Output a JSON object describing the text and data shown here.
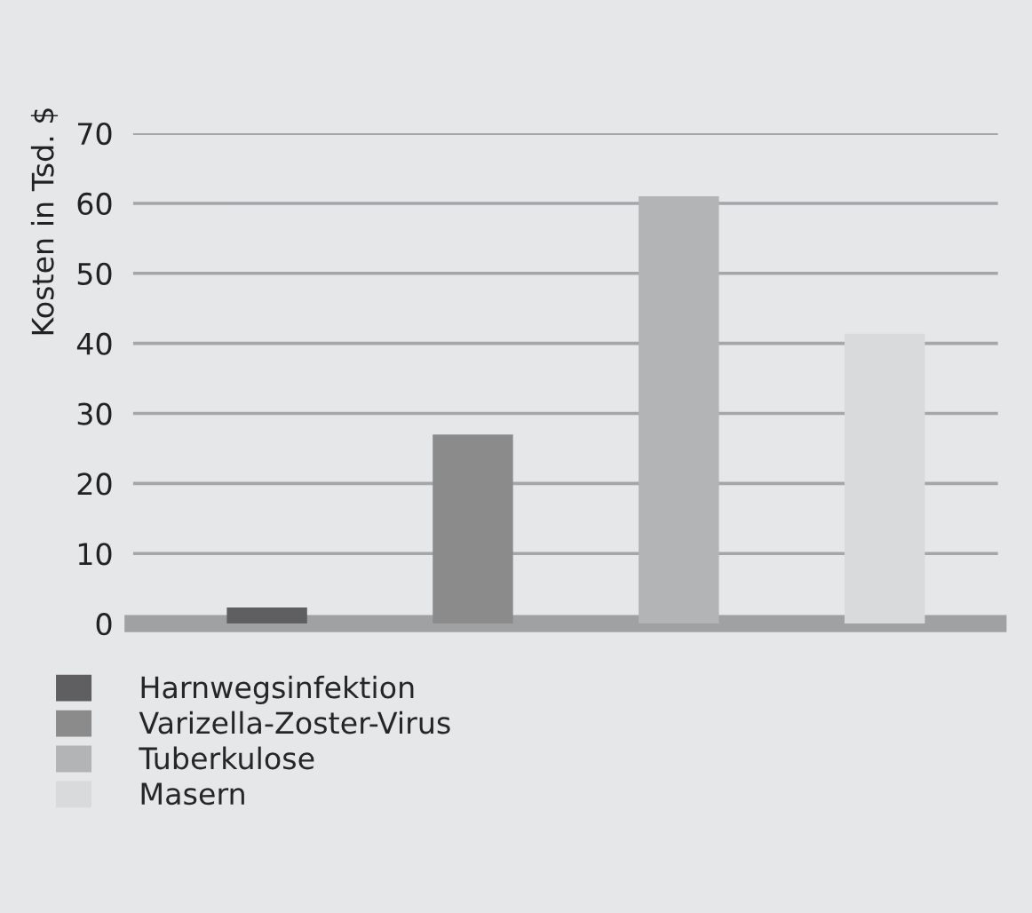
{
  "chart_data": {
    "type": "bar",
    "ylabel": "Kosten in Tsd. $",
    "categories": [
      null,
      null,
      null,
      null
    ],
    "series": [
      {
        "name": "Harnwegsinfektion",
        "color": "#5f5f61",
        "values": [
          2.3,
          null,
          null,
          null
        ]
      },
      {
        "name": "Varizella-Zoster-Virus",
        "color": "#8a8b8a",
        "values": [
          null,
          27,
          null,
          null
        ]
      },
      {
        "name": "Tuberkulose",
        "color": "#b3b4b6",
        "values": [
          null,
          null,
          61,
          null
        ]
      },
      {
        "name": "Masern",
        "color": "#d9dadc",
        "values": [
          null,
          null,
          null,
          41.4
        ]
      }
    ],
    "ylim": [
      0,
      70
    ],
    "yticks": [
      0,
      10,
      20,
      30,
      40,
      50,
      60,
      70
    ],
    "grid": "y",
    "legend": "bottom left"
  }
}
